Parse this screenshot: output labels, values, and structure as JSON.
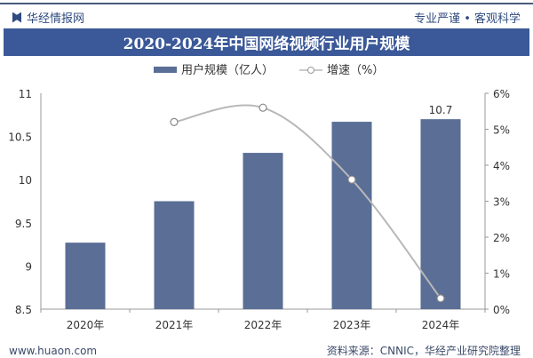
{
  "header": {
    "brand": "华经情报网",
    "slogan": "专业严谨 • 客观科学"
  },
  "footer": {
    "website": "www.huaon.com",
    "source": "资料来源：CNNIC，华经产业研究院整理"
  },
  "watermark": {
    "text": "华经产业研究院",
    "url": "www.huaon.com"
  },
  "colors": {
    "bar": "#5a6e96",
    "line": "#b8b8b8",
    "title_bg": "#3b5998"
  },
  "chart_data": {
    "type": "bar+line",
    "title": "2020-2024年中国网络视频行业用户规模",
    "categories": [
      "2020年",
      "2021年",
      "2022年",
      "2023年",
      "2024年"
    ],
    "series": [
      {
        "name": "用户规模（亿人）",
        "type": "bar",
        "axis": "left",
        "values": [
          9.27,
          9.75,
          10.31,
          10.67,
          10.7
        ]
      },
      {
        "name": "增速（%）",
        "type": "line",
        "axis": "right",
        "values": [
          null,
          5.2,
          5.6,
          3.6,
          0.3
        ]
      }
    ],
    "data_labels": [
      {
        "category": "2024年",
        "text": "10.7"
      }
    ],
    "left_axis": {
      "ylim": [
        8.5,
        11
      ],
      "ticks": [
        "8.5",
        "9",
        "9.5",
        "10",
        "10.5",
        "11"
      ]
    },
    "right_axis": {
      "ylim": [
        0,
        6
      ],
      "ticks": [
        "0%",
        "1%",
        "2%",
        "3%",
        "4%",
        "5%",
        "6%"
      ]
    },
    "legend": "top-center",
    "grid": false
  }
}
